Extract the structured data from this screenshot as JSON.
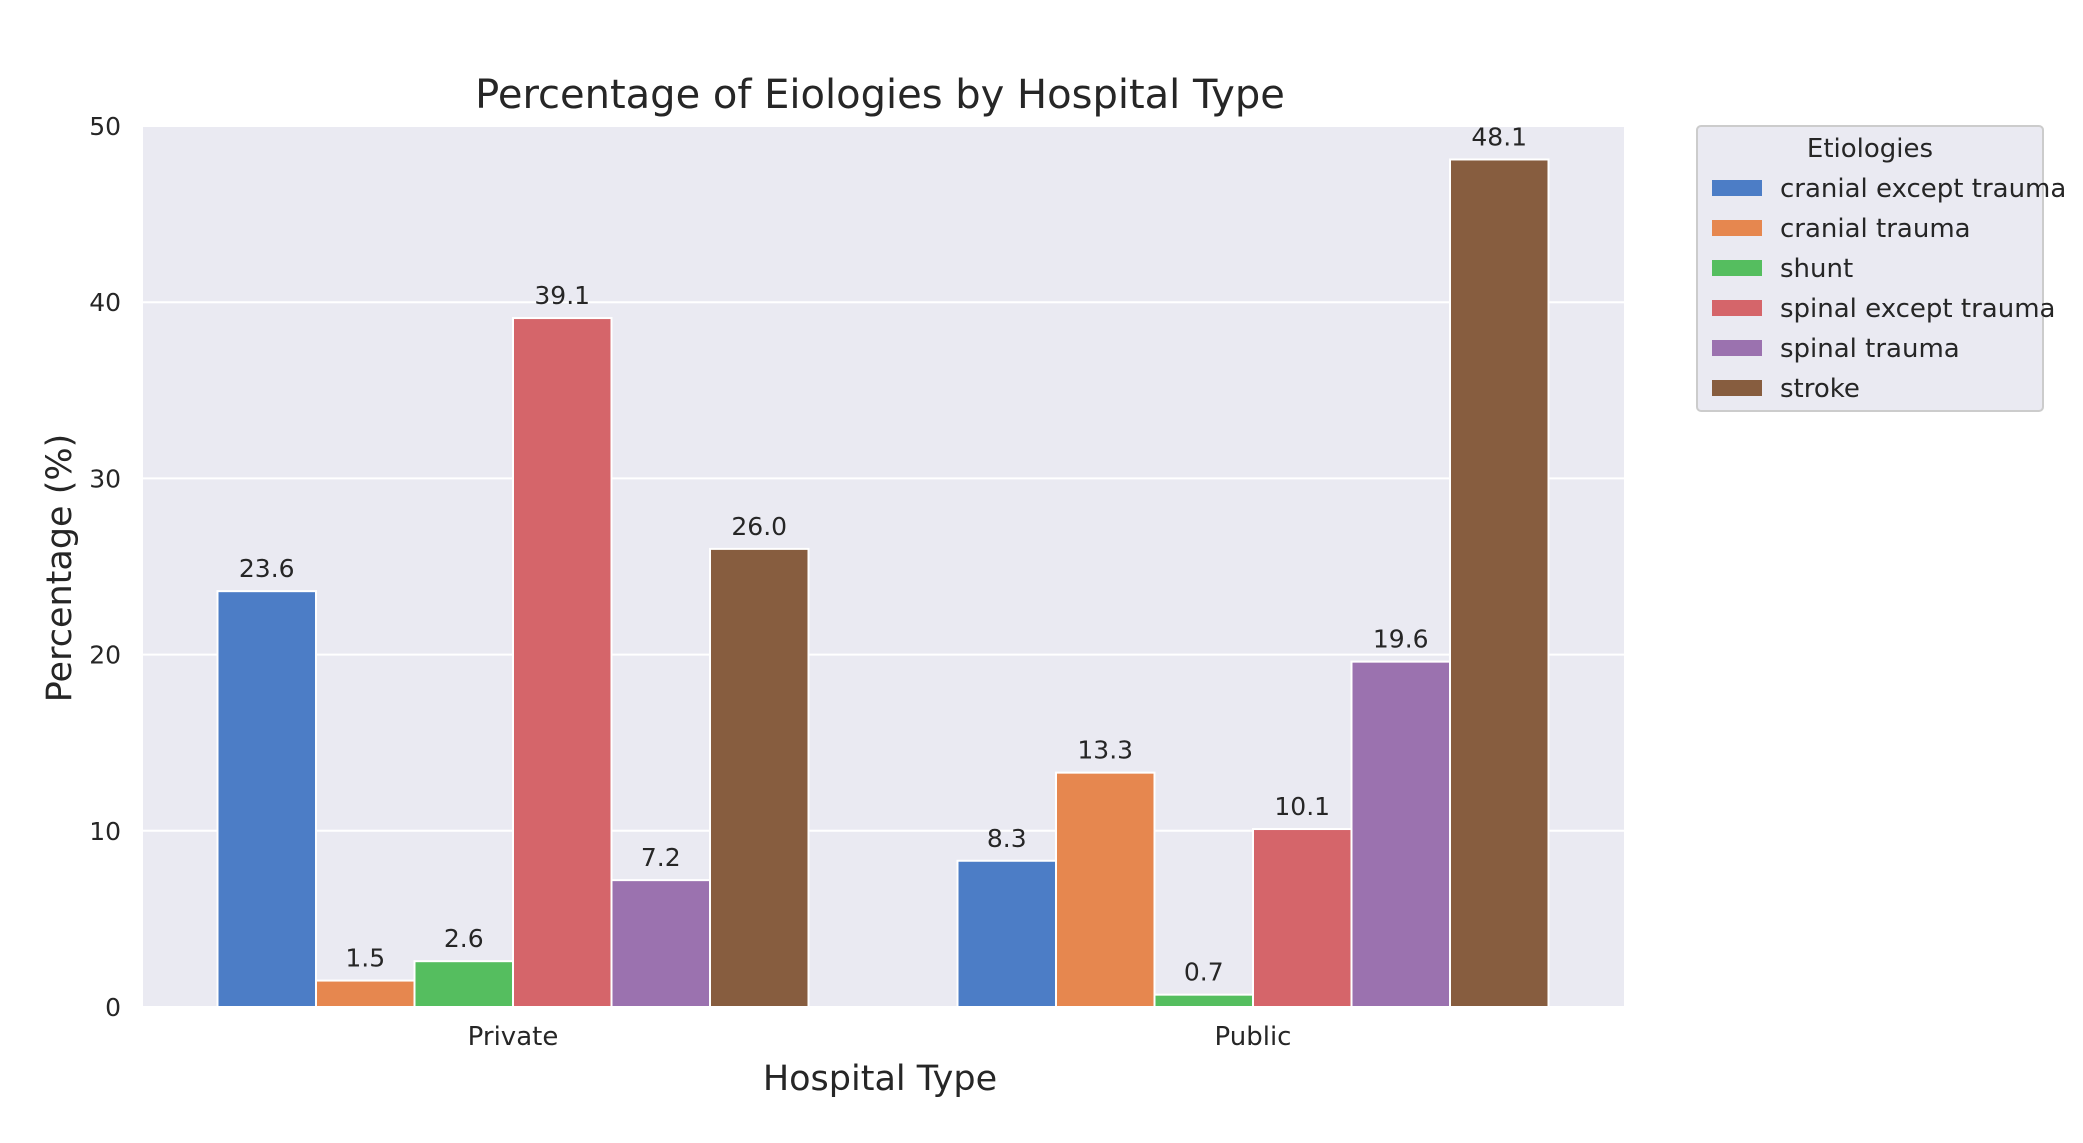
{
  "chart_data": {
    "type": "bar",
    "title": "Percentage of Eiologies by Hospital Type",
    "xlabel": "Hospital Type",
    "ylabel": "Percentage (%)",
    "categories": [
      "Private",
      "Public"
    ],
    "ylim": [
      0,
      50
    ],
    "yticks": [
      "0",
      "10",
      "20",
      "30",
      "40",
      "50"
    ],
    "grid": true,
    "legend": {
      "title": "Etiologies",
      "placement": "outside-top-right"
    },
    "series": [
      {
        "name": "cranial except trauma",
        "color": "#4c7dc6",
        "values": [
          23.6,
          8.3
        ],
        "labels": [
          "23.6",
          "8.3"
        ]
      },
      {
        "name": "cranial trauma",
        "color": "#e6874f",
        "values": [
          1.5,
          13.3
        ],
        "labels": [
          "1.5",
          "13.3"
        ]
      },
      {
        "name": "shunt",
        "color": "#55be5f",
        "values": [
          2.6,
          0.7
        ],
        "labels": [
          "2.6",
          "0.7"
        ]
      },
      {
        "name": "spinal except trauma",
        "color": "#d5656a",
        "values": [
          39.1,
          10.1
        ],
        "labels": [
          "39.1",
          "10.1"
        ]
      },
      {
        "name": "spinal trauma",
        "color": "#9b72af",
        "values": [
          7.2,
          19.6
        ],
        "labels": [
          "7.2",
          "19.6"
        ]
      },
      {
        "name": "stroke",
        "color": "#875d3f",
        "values": [
          26.0,
          48.1
        ],
        "labels": [
          "26.0",
          "48.1"
        ]
      }
    ],
    "colors": {
      "plot_background": "#eaeaf2",
      "grid": "#ffffff",
      "text": "#262626"
    }
  }
}
